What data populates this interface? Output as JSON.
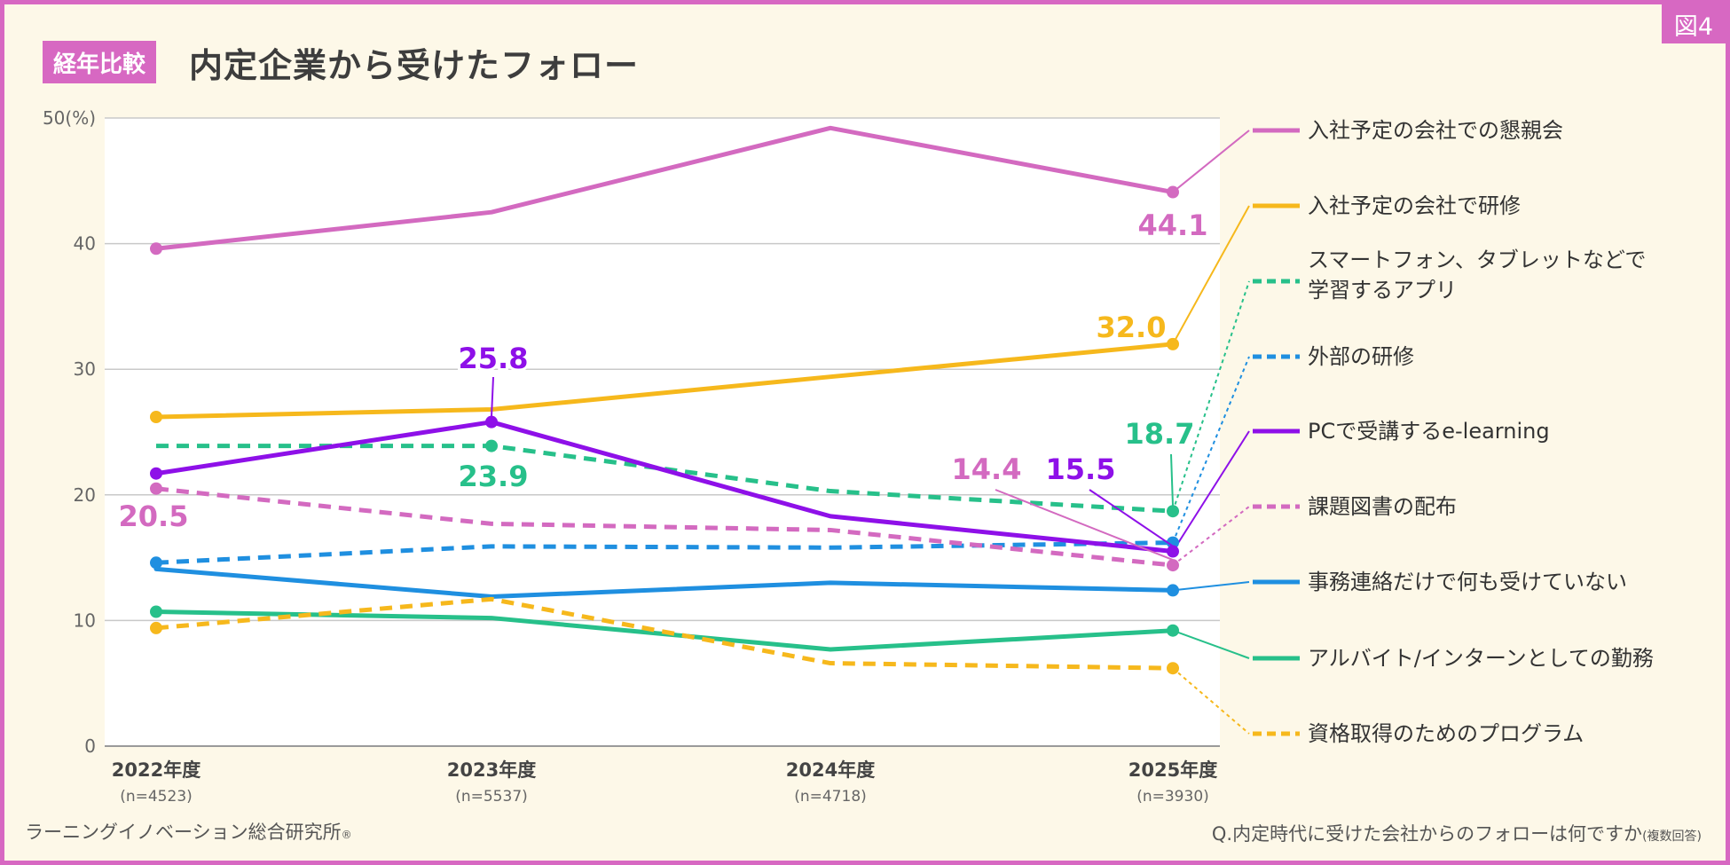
{
  "figure_tag": "図4",
  "title_badge": "経年比較",
  "title": "内定企業から受けたフォロー",
  "footer": {
    "source": "ラーニングイノベーション総合研究所",
    "source_mark": "®",
    "question": "Q.内定時代に受けた会社からのフォローは何ですか",
    "question_note": "(複数回答)"
  },
  "chart_data": {
    "type": "line",
    "title": "内定企業から受けたフォロー",
    "ylabel": "%",
    "ylim": [
      0,
      50
    ],
    "yticks": [
      0,
      10,
      20,
      30,
      40,
      50
    ],
    "ytick_labels": [
      "0",
      "10",
      "20",
      "30",
      "40",
      "50(%)"
    ],
    "categories": [
      "2022年度",
      "2023年度",
      "2024年度",
      "2025年度"
    ],
    "sample_sizes": [
      "(n=4523)",
      "(n=5537)",
      "(n=4718)",
      "(n=3930)"
    ],
    "grid": true,
    "legend": "right",
    "series": [
      {
        "name": "入社予定の会社での懇親会",
        "values": [
          39.6,
          42.5,
          49.2,
          44.1
        ],
        "color": "#d36ac0",
        "dashed": false
      },
      {
        "name": "入社予定の会社で研修",
        "values": [
          26.2,
          26.8,
          29.4,
          32.0
        ],
        "color": "#f6b81c",
        "dashed": false
      },
      {
        "name": "スマートフォン、タブレットなどで学習するアプリ",
        "values": [
          23.9,
          23.9,
          20.3,
          18.7
        ],
        "color": "#27c08a",
        "dashed": true
      },
      {
        "name": "外部の研修",
        "values": [
          14.6,
          15.9,
          15.8,
          16.2
        ],
        "color": "#1f8fe0",
        "dashed": true
      },
      {
        "name": "PCで受講するe-learning",
        "values": [
          21.7,
          25.8,
          18.3,
          15.5
        ],
        "color": "#8e10e8",
        "dashed": false
      },
      {
        "name": "課題図書の配布",
        "values": [
          20.5,
          17.7,
          17.2,
          14.4
        ],
        "color": "#d36ac0",
        "dashed": true
      },
      {
        "name": "事務連絡だけで何も受けていない",
        "values": [
          14.1,
          11.9,
          13.0,
          12.4
        ],
        "color": "#1f8fe0",
        "dashed": false
      },
      {
        "name": "アルバイト/インターンとしての勤務",
        "values": [
          10.7,
          10.2,
          7.7,
          9.2
        ],
        "color": "#27c08a",
        "dashed": false
      },
      {
        "name": "資格取得のためのプログラム",
        "values": [
          9.4,
          11.7,
          6.6,
          6.2
        ],
        "color": "#f6b81c",
        "dashed": true
      }
    ],
    "annotations": [
      {
        "text": "44.1",
        "series": 0,
        "point": 3,
        "color": "#d36ac0"
      },
      {
        "text": "32.0",
        "series": 1,
        "point": 3,
        "color": "#f6b81c"
      },
      {
        "text": "25.8",
        "series": 4,
        "point": 1,
        "color": "#8e10e8"
      },
      {
        "text": "23.9",
        "series": 2,
        "point": 1,
        "color": "#27c08a"
      },
      {
        "text": "20.5",
        "series": 5,
        "point": 0,
        "color": "#d36ac0"
      },
      {
        "text": "18.7",
        "series": 2,
        "point": 3,
        "color": "#27c08a"
      },
      {
        "text": "14.4",
        "series": 5,
        "point": 3,
        "color": "#d36ac0"
      },
      {
        "text": "15.5",
        "series": 4,
        "point": 3,
        "color": "#8e10e8"
      }
    ],
    "markers": [
      {
        "series": 0,
        "points": [
          0,
          3
        ]
      },
      {
        "series": 1,
        "points": [
          0,
          3
        ]
      },
      {
        "series": 2,
        "points": [
          1,
          3
        ]
      },
      {
        "series": 3,
        "points": [
          0,
          3
        ]
      },
      {
        "series": 4,
        "points": [
          0,
          1,
          3
        ]
      },
      {
        "series": 5,
        "points": [
          0,
          3
        ]
      },
      {
        "series": 6,
        "points": [
          3
        ]
      },
      {
        "series": 7,
        "points": [
          0,
          3
        ]
      },
      {
        "series": 8,
        "points": [
          0,
          3
        ]
      }
    ]
  }
}
